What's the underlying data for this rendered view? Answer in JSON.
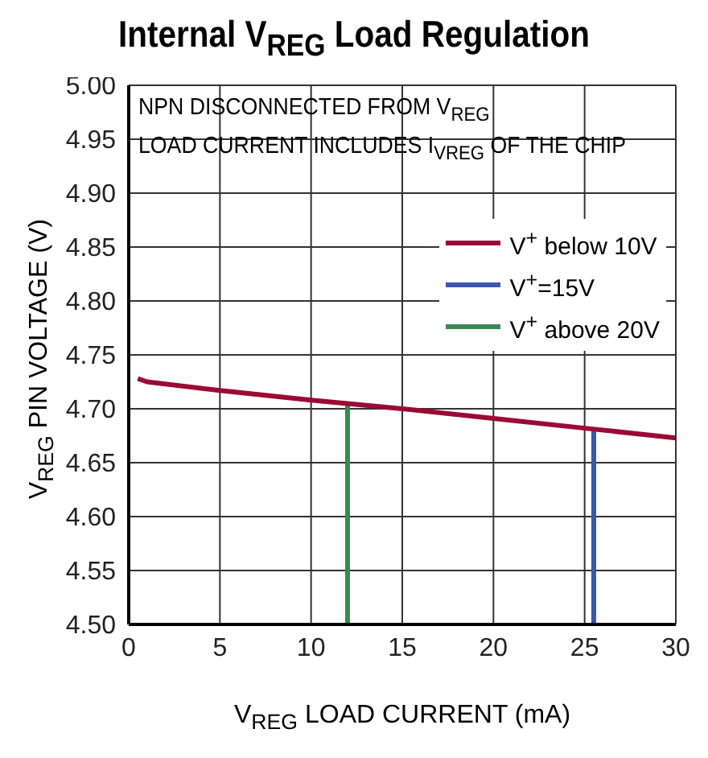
{
  "chart_data": {
    "type": "line",
    "title": "Internal V$_{REG}$ Load Regulation",
    "xlabel": "V$_{REG}$ LOAD CURRENT (mA)",
    "ylabel": "V$_{REG}$ PIN VOLTAGE (V)",
    "annotations": [
      "NPN DISCONNECTED FROM V$_{REG}$",
      "LOAD CURRENT INCLUDES I$_{VREG}$ OF THE CHIP"
    ],
    "xlim": [
      0,
      30
    ],
    "xticks": [
      0,
      5,
      10,
      15,
      20,
      25,
      30
    ],
    "ylim": [
      4.5,
      5.0
    ],
    "yticks": [
      {
        "value": 4.5,
        "label": "4.50"
      },
      4.55,
      {
        "value": 4.6,
        "label": "4.60"
      },
      4.65,
      {
        "value": 4.7,
        "label": "4.70"
      },
      4.75,
      {
        "value": 4.8,
        "label": "4.80"
      },
      4.85,
      {
        "value": 4.9,
        "label": "4.90"
      },
      4.95,
      {
        "value": 5.0,
        "label": "5.00"
      }
    ],
    "grid": true,
    "legend": "top right",
    "marker": "none",
    "line_style": "solid",
    "series": [
      {
        "name": "V$^{+}$ below 10V",
        "color": "#9b0a35",
        "x": [
          0.5,
          1,
          5,
          10,
          15,
          20,
          25,
          30
        ],
        "values": [
          4.728,
          4.725,
          4.717,
          4.708,
          4.7,
          4.691,
          4.682,
          4.673
        ]
      },
      {
        "name": "V$^{+}$=15V",
        "color": "#3a56b0",
        "x": [
          25.5,
          25.5
        ],
        "values": [
          4.681,
          4.5
        ]
      },
      {
        "name": "V$^{+}$ above 20V",
        "color": "#3a8a50",
        "x": [
          12,
          12
        ],
        "values": [
          4.704,
          4.5
        ]
      }
    ]
  }
}
